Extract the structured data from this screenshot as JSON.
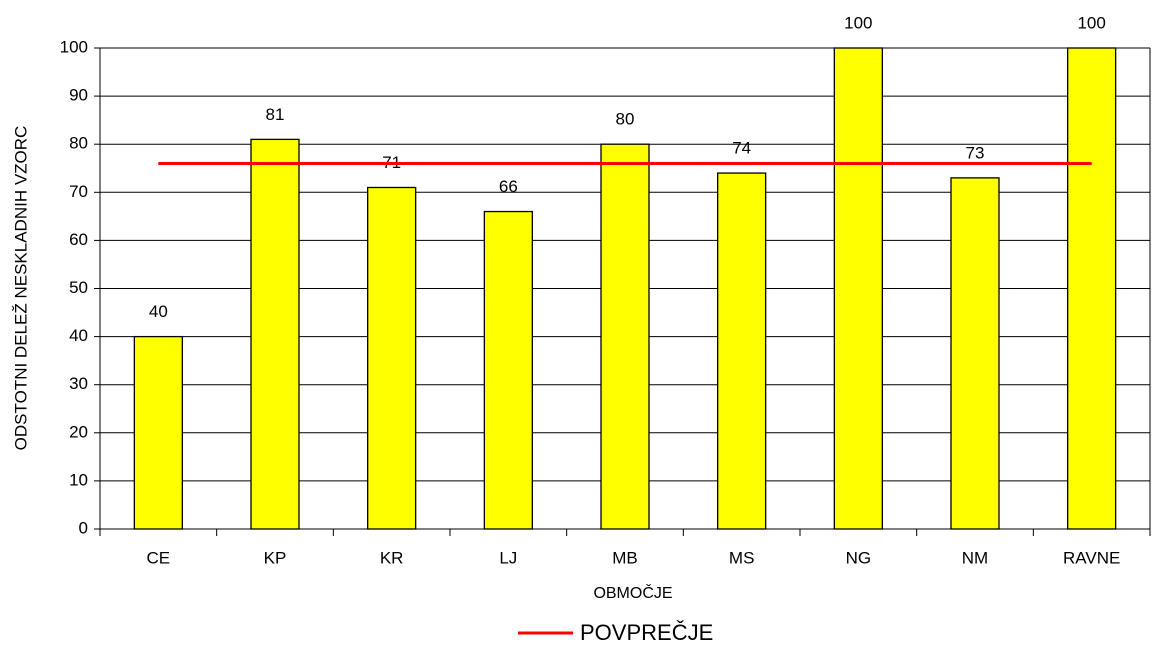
{
  "chart_data": {
    "type": "bar",
    "x_label": "OBMOČJE",
    "y_label": "ODSTOTNI DELEŽ NESKLADNIH VZORC",
    "categories": [
      "CE",
      "KP",
      "KR",
      "LJ",
      "MB",
      "MS",
      "NG",
      "NM",
      "RAVNE"
    ],
    "series": [
      {
        "type": "bar",
        "color": "#ffff00",
        "values": [
          40,
          81,
          71,
          66,
          80,
          74,
          100,
          73,
          100
        ]
      },
      {
        "type": "line",
        "name": "POVPREČJE",
        "color": "#ff0000",
        "values": [
          76,
          76,
          76,
          76,
          76,
          76,
          76,
          76,
          76
        ]
      }
    ],
    "ylim": [
      0,
      100
    ],
    "yticks": [
      0,
      10,
      20,
      30,
      40,
      50,
      60,
      70,
      80,
      90,
      100
    ],
    "grid": true
  }
}
